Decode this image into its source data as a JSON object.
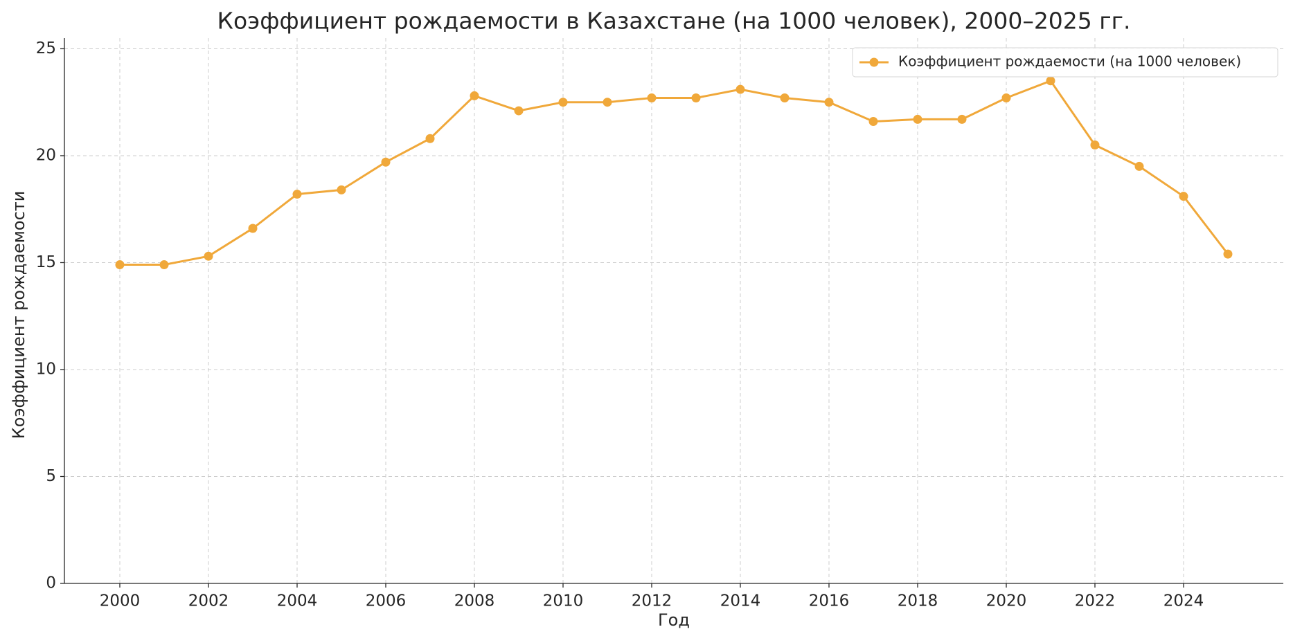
{
  "chart_data": {
    "type": "line",
    "title": "Коэффициент рождаемости в Казахстане (на 1000 человек), 2000–2025 гг.",
    "xlabel": "Год",
    "ylabel": "Коэффициент рождаемости",
    "x": [
      2000,
      2001,
      2002,
      2003,
      2004,
      2005,
      2006,
      2007,
      2008,
      2009,
      2010,
      2011,
      2012,
      2013,
      2014,
      2015,
      2016,
      2017,
      2018,
      2019,
      2020,
      2021,
      2022,
      2023,
      2024,
      2025
    ],
    "series": [
      {
        "name": "Коэффициент рождаемости (на 1000 человек)",
        "color": "#f0a83a",
        "values": [
          14.9,
          14.9,
          15.3,
          16.6,
          18.2,
          18.4,
          19.7,
          20.8,
          22.8,
          22.1,
          22.5,
          22.5,
          22.7,
          22.7,
          23.1,
          22.7,
          22.5,
          21.6,
          21.7,
          21.7,
          22.7,
          23.5,
          20.5,
          19.5,
          18.1,
          15.4
        ]
      }
    ],
    "xlim": [
      1998.75,
      2026.25
    ],
    "xticks": [
      2000,
      2002,
      2004,
      2006,
      2008,
      2010,
      2012,
      2014,
      2016,
      2018,
      2020,
      2022,
      2024
    ],
    "ylim": [
      0,
      25.5
    ],
    "yticks": [
      0,
      5,
      10,
      15,
      20,
      25
    ],
    "grid": true,
    "legend": "upper right"
  }
}
